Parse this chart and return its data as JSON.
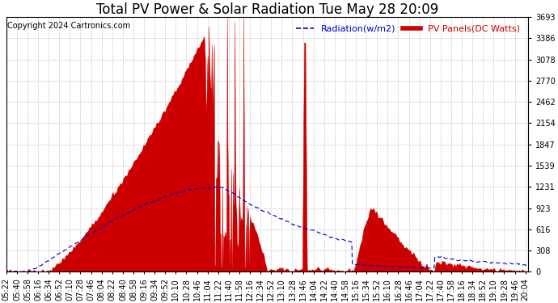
{
  "title": "Total PV Power & Solar Radiation Tue May 28 20:09",
  "copyright": "Copyright 2024 Cartronics.com",
  "legend_radiation": "Radiation(w/m2)",
  "legend_pv": "PV Panels(DC Watts)",
  "ylabel_right_values": [
    0.0,
    307.8,
    615.6,
    923.3,
    1231.1,
    1538.9,
    1846.7,
    2154.5,
    2462.2,
    2770.0,
    3077.8,
    3385.6,
    3693.3
  ],
  "ymax": 3693.3,
  "ymin": 0.0,
  "background_color": "#ffffff",
  "plot_bg_color": "#ffffff",
  "grid_color": "#c8c8c8",
  "pv_fill_color": "#cc0000",
  "pv_line_color": "#cc0000",
  "radiation_line_color": "#0000cc",
  "title_color": "#000000",
  "copyright_color": "#000000",
  "title_fontsize": 12,
  "copyright_fontsize": 7,
  "legend_fontsize": 8,
  "tick_fontsize": 7
}
